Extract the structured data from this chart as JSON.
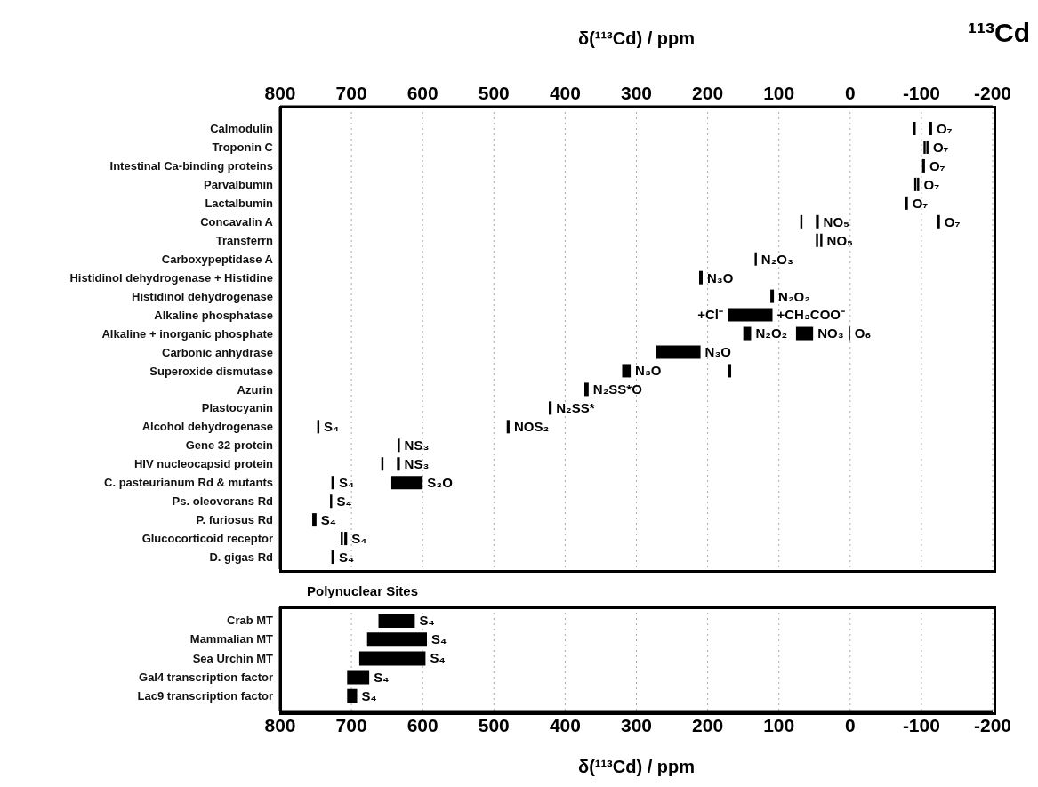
{
  "chart_data": [
    {
      "type": "bar",
      "orientation": "horizontal",
      "grid": "x",
      "categories": [
        "Calmodulin",
        "Troponin C",
        "Intestinal Ca-binding proteins",
        "Parvalbumin",
        "Lactalbumin",
        "Concavalin A",
        "Transferrn",
        "Carboxypeptidase A",
        "Histidinol dehydrogenase + Histidine",
        "Histidinol dehydrogenase",
        "Alkaline phosphatase",
        "Alkaline + inorganic phosphate",
        "Carbonic anhydrase",
        "Superoxide dismutase",
        "Azurin",
        "Plastocyanin",
        "Alcohol dehydrogenase",
        "Gene 32 protein",
        "HIV nucleocapsid protein",
        "C. pasteurianum Rd & mutants",
        "Ps. oleovorans Rd",
        "P. furiosus Rd",
        "Glucocorticoid receptor",
        "D. gigas Rd"
      ],
      "series": [
        {
          "color": "#000000",
          "base": [
            -92,
            -106,
            null,
            -93,
            null,
            67,
            45,
            null,
            null,
            null,
            null,
            139,
            null,
            308,
            null,
            null,
            745,
            null,
            655,
            724,
            null,
            null,
            712,
            null
          ],
          "values": [
            4,
            3,
            null,
            3,
            null,
            3,
            3,
            null,
            null,
            null,
            null,
            11,
            null,
            12,
            null,
            null,
            3,
            null,
            3,
            4,
            null,
            null,
            3,
            null
          ]
        },
        {
          "color": "#000000",
          "base": [
            -115,
            -110,
            -105,
            -97,
            -81,
            44,
            39,
            131,
            207,
            107,
            109,
            52,
            210,
            167,
            367,
            419,
            478,
            632,
            632,
            600,
            727,
            749,
            706,
            724
          ],
          "values": [
            4,
            3,
            4,
            3,
            4,
            4,
            3,
            3,
            5,
            5,
            63,
            24,
            62,
            5,
            6,
            4,
            4,
            3,
            4,
            44,
            3,
            6,
            4,
            4
          ]
        },
        {
          "color": "#000000",
          "base": [
            null,
            null,
            null,
            null,
            null,
            -126,
            null,
            null,
            null,
            null,
            null,
            0,
            null,
            null,
            null,
            null,
            null,
            null,
            null,
            null,
            null,
            null,
            null,
            null
          ],
          "values": [
            null,
            null,
            null,
            null,
            null,
            4,
            null,
            null,
            null,
            null,
            null,
            2,
            null,
            null,
            null,
            null,
            null,
            null,
            null,
            null,
            null,
            null,
            null,
            null
          ]
        }
      ],
      "xlim": [
        800,
        -200
      ],
      "xticks": [
        800,
        700,
        600,
        500,
        400,
        300,
        200,
        100,
        0,
        -100,
        -200
      ],
      "xlabel": "δ(¹¹³Cd) / ppm",
      "annotations": [
        "¹¹³Cd",
        {
          "text": "O₇",
          "x": -115,
          "y": "Calmodulin"
        },
        {
          "text": "O₇",
          "x": -110,
          "y": "Troponin C"
        },
        {
          "text": "O₇",
          "x": -105,
          "y": "Intestinal Ca-binding proteins"
        },
        {
          "text": "O₇",
          "x": -97,
          "y": "Parvalbumin"
        },
        {
          "text": "O₇",
          "x": -81,
          "y": "Lactalbumin"
        },
        {
          "text": "NO₅",
          "x": 44,
          "y": "Concavalin A"
        },
        {
          "text": "O₇",
          "x": -126,
          "y": "Concavalin A"
        },
        {
          "text": "NO₅",
          "x": 39,
          "y": "Transferrn"
        },
        {
          "text": "N₂O₃",
          "x": 131,
          "y": "Carboxypeptidase A"
        },
        {
          "text": "N₃O",
          "x": 207,
          "y": "Histidinol dehydrogenase + Histidine"
        },
        {
          "text": "N₂O₂",
          "x": 107,
          "y": "Histidinol dehydrogenase"
        },
        {
          "text": "+Cl⁻",
          "x": 172,
          "y": "Alkaline phosphatase"
        },
        {
          "text": "+CH₃COO⁻",
          "x": 109,
          "y": "Alkaline phosphatase"
        },
        {
          "text": "N₂O₂",
          "x": 139,
          "y": "Alkaline + inorganic phosphate"
        },
        {
          "text": "NO₃",
          "x": 52,
          "y": "Alkaline + inorganic phosphate"
        },
        {
          "text": "O₆",
          "x": 0,
          "y": "Alkaline + inorganic phosphate"
        },
        {
          "text": "N₃O",
          "x": 210,
          "y": "Carbonic anhydrase"
        },
        {
          "text": "N₃O",
          "x": 308,
          "y": "Superoxide dismutase"
        },
        {
          "text": "N₂SS*O",
          "x": 367,
          "y": "Azurin"
        },
        {
          "text": "N₂SS*",
          "x": 419,
          "y": "Plastocyanin"
        },
        {
          "text": "S₄",
          "x": 745,
          "y": "Alcohol dehydrogenase"
        },
        {
          "text": "NOS₂",
          "x": 478,
          "y": "Alcohol dehydrogenase"
        },
        {
          "text": "NS₃",
          "x": 632,
          "y": "Gene 32 protein"
        },
        {
          "text": "NS₃",
          "x": 632,
          "y": "HIV nucleocapsid protein"
        },
        {
          "text": "S₄",
          "x": 724,
          "y": "C. pasteurianum Rd & mutants"
        },
        {
          "text": "S₃O",
          "x": 600,
          "y": "C. pasteurianum Rd & mutants"
        },
        {
          "text": "S₄",
          "x": 727,
          "y": "Ps. oleovorans Rd"
        },
        {
          "text": "S₄",
          "x": 749,
          "y": "P. furiosus Rd"
        },
        {
          "text": "S₄",
          "x": 706,
          "y": "Glucocorticoid receptor"
        },
        {
          "text": "S₄",
          "x": 724,
          "y": "D. gigas Rd"
        }
      ]
    },
    {
      "type": "bar",
      "orientation": "horizontal",
      "grid": "x",
      "title": "Polynuclear Sites",
      "categories": [
        "Crab MT",
        "Mammalian MT",
        "Sea Urchin MT",
        "Gal4 transcription factor",
        "Lac9 transcription factor"
      ],
      "series": [
        {
          "color": "#000000",
          "base": [
            611,
            594,
            596,
            675,
            692
          ],
          "values": [
            51,
            84,
            93,
            31,
            14
          ]
        }
      ],
      "xlim": [
        800,
        -200
      ],
      "xticks": [
        800,
        700,
        600,
        500,
        400,
        300,
        200,
        100,
        0,
        -100,
        -200
      ],
      "xlabel": "δ(¹¹³Cd) / ppm",
      "annotations": [
        {
          "text": "S₄",
          "x": 611,
          "y": "Crab MT"
        },
        {
          "text": "S₄",
          "x": 594,
          "y": "Mammalian MT"
        },
        {
          "text": "S₄",
          "x": 596,
          "y": "Sea Urchin MT"
        },
        {
          "text": "S₄",
          "x": 675,
          "y": "Gal4 transcription factor"
        },
        {
          "text": "S₄",
          "x": 692,
          "y": "Lac9 transcription factor"
        }
      ]
    }
  ]
}
